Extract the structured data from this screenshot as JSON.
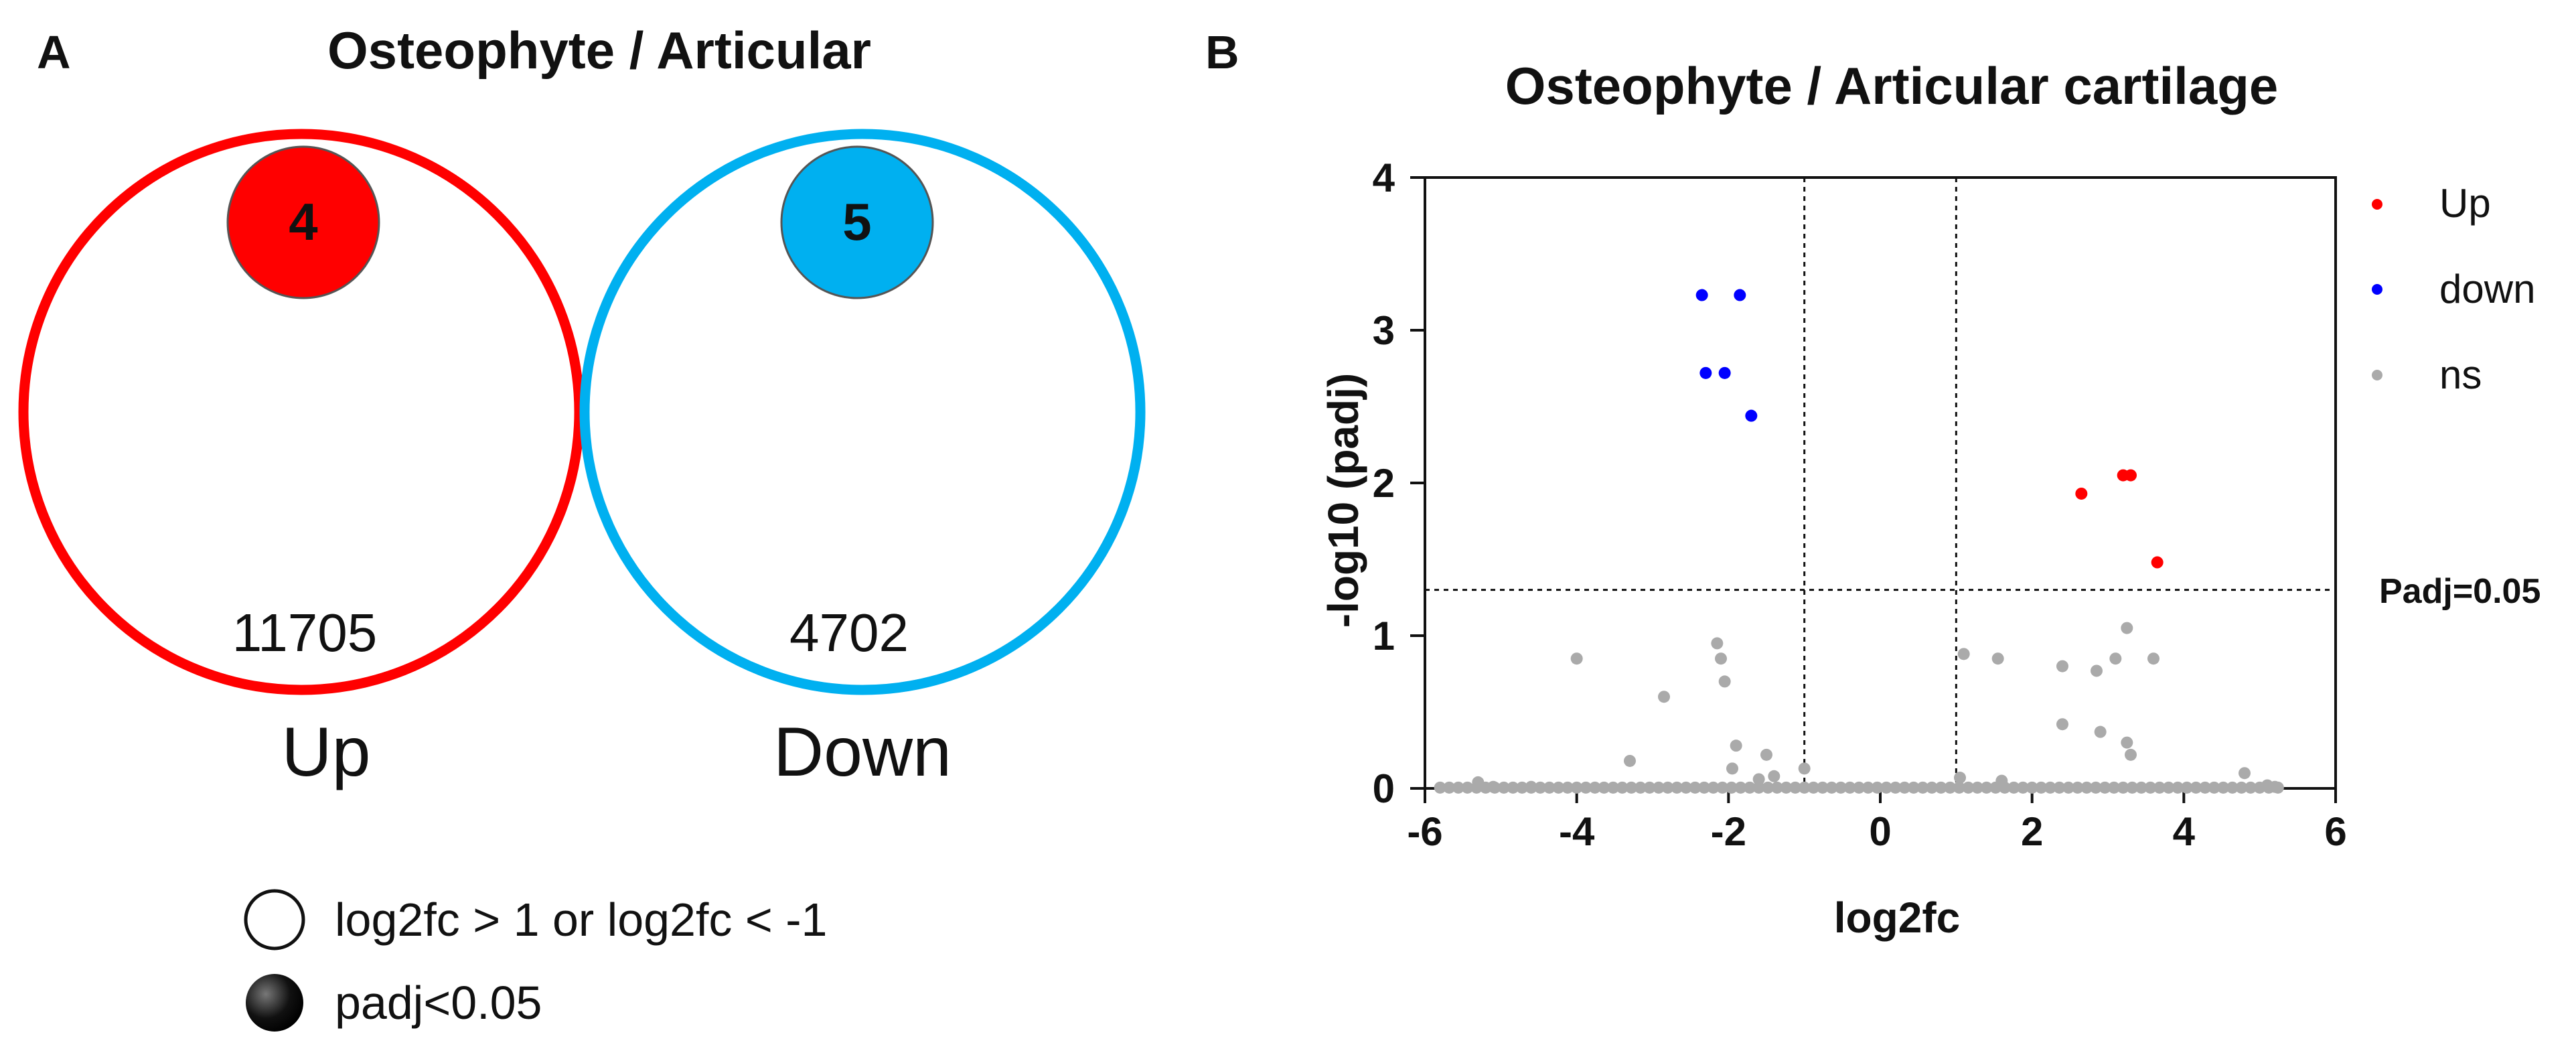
{
  "panel_a": {
    "label": "A",
    "title": "Osteophyte / Articular",
    "up": {
      "big_count": "11705",
      "small_count": "4",
      "label": "Up",
      "color": "#ff0000"
    },
    "down": {
      "big_count": "4702",
      "small_count": "5",
      "label": "Down",
      "color": "#00b0f0"
    },
    "legend": [
      {
        "label": "log2fc > 1 or log2fc < -1",
        "symbol": "open-circle"
      },
      {
        "label": "padj<0.05",
        "symbol": "filled-circle"
      }
    ]
  },
  "panel_b": {
    "label": "B"
  },
  "chart_data": {
    "type": "scatter",
    "title": "Osteophyte / Articular cartilage",
    "xlabel": "log2fc",
    "ylabel": "-log10 (padj)",
    "xlim": [
      -6,
      6
    ],
    "ylim": [
      0,
      4
    ],
    "xticks": [
      -6,
      -4,
      -2,
      0,
      2,
      4,
      6
    ],
    "yticks": [
      0,
      1,
      2,
      3,
      4
    ],
    "grid": false,
    "legend_position": "right",
    "thresholds": {
      "vertical": [
        -1,
        1
      ],
      "horizontal": 1.3,
      "horizontal_label": "Padj=0.05"
    },
    "series": [
      {
        "name": "Up",
        "color": "#ff0000",
        "points": [
          [
            2.65,
            1.93
          ],
          [
            3.2,
            2.05
          ],
          [
            3.3,
            2.05
          ],
          [
            3.65,
            1.48
          ]
        ]
      },
      {
        "name": "down",
        "color": "#0000ff",
        "points": [
          [
            -2.35,
            3.23
          ],
          [
            -1.85,
            3.23
          ],
          [
            -2.3,
            2.72
          ],
          [
            -2.05,
            2.72
          ],
          [
            -1.7,
            2.44
          ]
        ]
      },
      {
        "name": "ns",
        "color": "#aaaaaa",
        "points": [
          [
            -4.0,
            0.85
          ],
          [
            -3.3,
            0.18
          ],
          [
            -2.85,
            0.6
          ],
          [
            -2.15,
            0.95
          ],
          [
            -2.1,
            0.85
          ],
          [
            -2.05,
            0.7
          ],
          [
            -1.9,
            0.28
          ],
          [
            -1.95,
            0.13
          ],
          [
            -1.5,
            0.22
          ],
          [
            -1.4,
            0.08
          ],
          [
            -1.6,
            0.06
          ],
          [
            -1.0,
            0.13
          ],
          [
            -5.3,
            0.04
          ],
          [
            -5.1,
            0.01
          ],
          [
            -4.6,
            0.01
          ],
          [
            1.05,
            0.07
          ],
          [
            1.1,
            0.88
          ],
          [
            1.55,
            0.85
          ],
          [
            1.6,
            0.05
          ],
          [
            2.4,
            0.8
          ],
          [
            2.4,
            0.42
          ],
          [
            2.85,
            0.77
          ],
          [
            2.9,
            0.37
          ],
          [
            3.1,
            0.85
          ],
          [
            3.25,
            1.05
          ],
          [
            3.25,
            0.3
          ],
          [
            3.3,
            0.22
          ],
          [
            3.6,
            0.85
          ],
          [
            4.8,
            0.1
          ],
          [
            5.1,
            0.02
          ],
          [
            5.2,
            0.01
          ]
        ]
      }
    ]
  }
}
